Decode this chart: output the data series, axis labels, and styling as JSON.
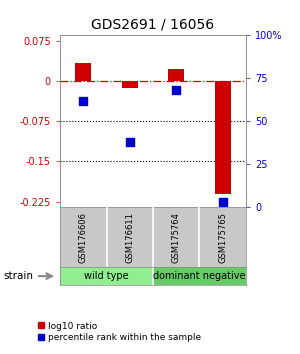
{
  "title": "GDS2691 / 16056",
  "samples": [
    "GSM176606",
    "GSM176611",
    "GSM175764",
    "GSM175765"
  ],
  "log10_ratio": [
    0.033,
    -0.013,
    0.022,
    -0.21
  ],
  "percentile_rank": [
    62,
    38,
    68,
    3
  ],
  "groups": [
    {
      "label": "wild type",
      "samples": [
        0,
        1
      ],
      "color": "#90ee90"
    },
    {
      "label": "dominant negative",
      "samples": [
        2,
        3
      ],
      "color": "#66cc66"
    }
  ],
  "strain_label": "strain",
  "ylim_left": [
    -0.235,
    0.085
  ],
  "ylim_right": [
    0,
    100
  ],
  "yticks_left": [
    0.075,
    0,
    -0.075,
    -0.15,
    -0.225
  ],
  "yticks_right": [
    100,
    75,
    50,
    25,
    0
  ],
  "dotted_lines": [
    -0.075,
    -0.15
  ],
  "bar_color": "#cc0000",
  "dot_color": "#0000cc",
  "bar_width": 0.35,
  "dot_size": 28,
  "legend_red_label": "log10 ratio",
  "legend_blue_label": "percentile rank within the sample",
  "background_color": "#ffffff",
  "plot_bg_color": "#ffffff",
  "gray_box_color": "#c8c8c8",
  "white_div_color": "#ffffff"
}
